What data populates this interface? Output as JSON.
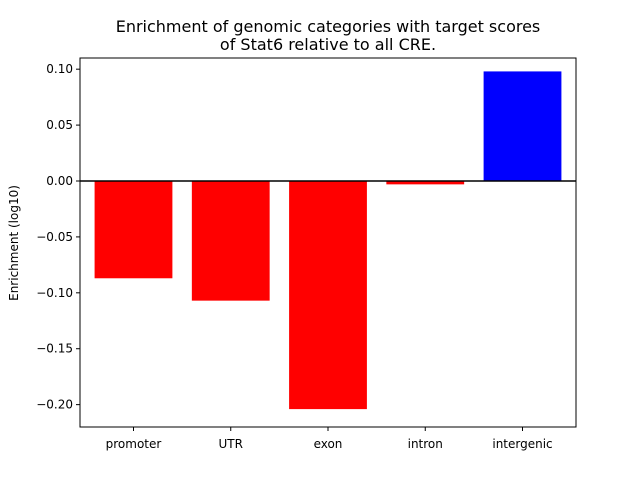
{
  "chart_data": {
    "type": "bar",
    "title": [
      "Enrichment of genomic categories with target scores",
      "of Stat6 relative to all CRE."
    ],
    "xlabel": "",
    "ylabel": "Enrichment (log10)",
    "categories": [
      "promoter",
      "UTR",
      "exon",
      "intron",
      "intergenic"
    ],
    "values": [
      -0.087,
      -0.107,
      -0.204,
      -0.003,
      0.098
    ],
    "colors": [
      "#ff0000",
      "#ff0000",
      "#ff0000",
      "#ff0000",
      "#0000ff"
    ],
    "ylim": [
      -0.22,
      0.11
    ],
    "yticks": [
      0.1,
      0.05,
      0.0,
      -0.05,
      -0.1,
      -0.15,
      -0.2
    ],
    "ytick_labels": [
      "0.10",
      "0.05",
      "0.00",
      "−0.05",
      "−0.10",
      "−0.15",
      "−0.20"
    ],
    "zero_line": true,
    "grid": false
  }
}
